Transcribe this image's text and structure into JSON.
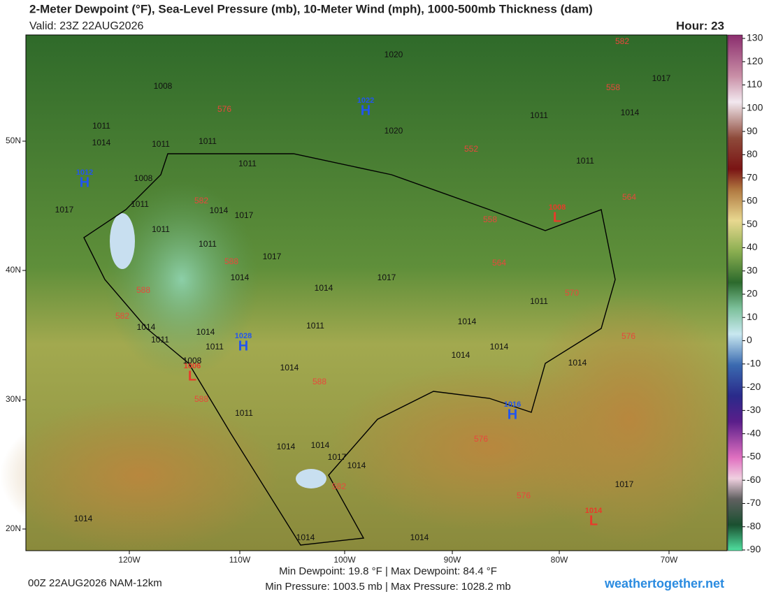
{
  "header": {
    "title": "2-Meter Dewpoint (°F), Sea-Level Pressure (mb), 10-Meter Wind (mph), 1000-500mb Thickness (dam)",
    "valid": "Valid: 23Z 22AUG2026",
    "hour": "Hour: 23"
  },
  "colorbar": {
    "ticks": [
      130,
      120,
      110,
      100,
      90,
      80,
      70,
      60,
      50,
      40,
      30,
      20,
      10,
      0,
      -10,
      -20,
      -30,
      -40,
      -50,
      -60,
      -70,
      -80,
      -90
    ]
  },
  "axes": {
    "lat": [
      "50N",
      "40N",
      "30N",
      "20N"
    ],
    "lon": [
      "120W",
      "110W",
      "100W",
      "90W",
      "80W",
      "70W"
    ]
  },
  "centers": [
    {
      "type": "H",
      "value": "1022"
    },
    {
      "type": "H",
      "value": "1012"
    },
    {
      "type": "L",
      "value": "1008"
    },
    {
      "type": "H",
      "value": "1028"
    },
    {
      "type": "L",
      "value": "1006"
    },
    {
      "type": "H",
      "value": "1016"
    },
    {
      "type": "L",
      "value": "1014"
    }
  ],
  "isobar_labels": [
    "1020",
    "1008",
    "1017",
    "1011",
    "1014",
    "1020",
    "1011",
    "1014",
    "1011",
    "1011",
    "1011",
    "1011",
    "1008",
    "1017",
    "1011",
    "1014",
    "1017",
    "1011",
    "1011",
    "1017",
    "1014",
    "1017",
    "1014",
    "1011",
    "1014",
    "1014",
    "1011",
    "1014",
    "1011",
    "1011",
    "1014",
    "1014",
    "1014",
    "1014",
    "1008",
    "1011",
    "1014",
    "1014",
    "1017",
    "1014",
    "1017",
    "1014",
    "1014",
    "1014"
  ],
  "thickness_labels": [
    "582",
    "558",
    "576",
    "552",
    "582",
    "564",
    "558",
    "588",
    "564",
    "588",
    "570",
    "582",
    "576",
    "588",
    "588",
    "576",
    "582",
    "576"
  ],
  "footer": {
    "run": "00Z 22AUG2026 NAM-12km",
    "dewpoint": "Min Dewpoint:  19.8 °F | Max Dewpoint:  84.4 °F",
    "pressure": "Min Pressure: 1003.5 mb | Max Pressure: 1028.2 mb",
    "site": "weathertogether.net"
  }
}
